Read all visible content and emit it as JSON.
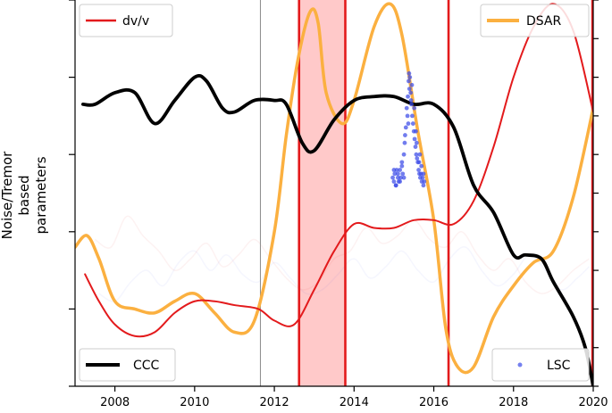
{
  "chart_data": {
    "type": "line",
    "ylabel": [
      "Noise/Tremor",
      "based",
      "parameters"
    ],
    "xlim": [
      2007.0,
      2020.0
    ],
    "ylim": [
      0.0,
      1.0
    ],
    "x_ticks": [
      2008,
      2010,
      2012,
      2014,
      2016,
      2018,
      2020
    ],
    "y_ticks_left": [
      0.0,
      0.2,
      0.4,
      0.6,
      0.8,
      1.0
    ],
    "y_ticks_right": [
      0.0,
      0.1,
      0.2,
      0.3,
      0.4,
      0.5,
      0.6,
      0.7,
      0.8,
      0.9,
      1.0
    ],
    "series": [
      {
        "name": "dv/v",
        "color": "#e31a1c",
        "legend": "top-left",
        "x": [
          2007.25,
          2007.6,
          2008.0,
          2008.5,
          2009.0,
          2009.5,
          2010.0,
          2010.5,
          2011.0,
          2011.6,
          2012.0,
          2012.5,
          2013.0,
          2013.5,
          2014.0,
          2014.5,
          2015.0,
          2015.5,
          2016.0,
          2016.5,
          2017.0,
          2017.5,
          2018.0,
          2018.5,
          2019.0,
          2019.5,
          2020.0
        ],
        "values": [
          0.29,
          0.22,
          0.16,
          0.13,
          0.14,
          0.19,
          0.22,
          0.22,
          0.21,
          0.2,
          0.17,
          0.16,
          0.25,
          0.35,
          0.42,
          0.41,
          0.41,
          0.43,
          0.43,
          0.42,
          0.48,
          0.62,
          0.8,
          0.93,
          0.99,
          0.92,
          0.71
        ]
      },
      {
        "name": "DSAR",
        "color": "#fbb040",
        "legend": "top-right",
        "x": [
          2007.0,
          2007.3,
          2007.6,
          2008.0,
          2008.5,
          2009.0,
          2009.5,
          2010.0,
          2010.5,
          2011.0,
          2011.5,
          2012.0,
          2012.3,
          2012.6,
          2012.9,
          2013.1,
          2013.3,
          2013.7,
          2014.0,
          2014.5,
          2014.9,
          2015.2,
          2015.6,
          2016.0,
          2016.3,
          2016.6,
          2017.0,
          2017.5,
          2018.0,
          2018.5,
          2019.0,
          2019.5,
          2020.0
        ],
        "values": [
          0.36,
          0.39,
          0.33,
          0.22,
          0.2,
          0.19,
          0.22,
          0.24,
          0.19,
          0.14,
          0.17,
          0.4,
          0.65,
          0.85,
          0.97,
          0.94,
          0.76,
          0.68,
          0.74,
          0.93,
          0.99,
          0.91,
          0.66,
          0.43,
          0.15,
          0.05,
          0.05,
          0.18,
          0.26,
          0.32,
          0.35,
          0.49,
          0.72
        ]
      },
      {
        "name": "CCC",
        "color": "#000000",
        "legend": "bottom-left",
        "x": [
          2007.2,
          2007.5,
          2008.0,
          2008.5,
          2009.0,
          2009.5,
          2010.0,
          2010.3,
          2010.7,
          2011.0,
          2011.5,
          2012.0,
          2012.3,
          2012.7,
          2013.0,
          2013.5,
          2014.0,
          2014.5,
          2015.0,
          2015.5,
          2016.0,
          2016.5,
          2017.0,
          2017.5,
          2018.0,
          2018.3,
          2018.7,
          2019.0,
          2019.5,
          2019.8,
          2020.0
        ],
        "values": [
          0.73,
          0.73,
          0.76,
          0.76,
          0.68,
          0.74,
          0.8,
          0.79,
          0.72,
          0.71,
          0.74,
          0.74,
          0.73,
          0.63,
          0.61,
          0.69,
          0.74,
          0.75,
          0.75,
          0.73,
          0.73,
          0.67,
          0.52,
          0.45,
          0.34,
          0.34,
          0.33,
          0.27,
          0.18,
          0.1,
          0.0
        ]
      },
      {
        "name": "LSC",
        "type": "scatter",
        "color": "#3b4be8",
        "legend": "bottom-right",
        "x": [
          2014.97,
          2015.0,
          2015.02,
          2015.05,
          2015.07,
          2015.1,
          2015.12,
          2015.15,
          2015.17,
          2015.2,
          2015.22,
          2015.25,
          2015.27,
          2015.3,
          2015.32,
          2015.35,
          2015.37,
          2015.38,
          2015.4,
          2015.42,
          2015.44,
          2015.46,
          2015.48,
          2015.5,
          2015.52,
          2015.54,
          2015.56,
          2015.58,
          2015.6,
          2015.62,
          2015.64,
          2015.66,
          2015.68,
          2015.7,
          2015.72,
          2015.74,
          2015.76,
          2015.0,
          2015.1,
          2015.2,
          2015.28,
          2015.34,
          2015.39,
          2015.45,
          2015.51,
          2015.57,
          2015.63,
          2015.69,
          2015.74,
          2015.05,
          2015.15,
          2015.25,
          2015.36,
          2015.43,
          2015.55,
          2015.65
        ],
        "values": [
          0.54,
          0.53,
          0.55,
          0.52,
          0.56,
          0.54,
          0.53,
          0.56,
          0.54,
          0.57,
          0.55,
          0.6,
          0.63,
          0.67,
          0.72,
          0.75,
          0.79,
          0.81,
          0.8,
          0.76,
          0.73,
          0.7,
          0.68,
          0.66,
          0.64,
          0.62,
          0.6,
          0.59,
          0.58,
          0.56,
          0.55,
          0.54,
          0.55,
          0.53,
          0.54,
          0.52,
          0.53,
          0.56,
          0.55,
          0.58,
          0.65,
          0.7,
          0.77,
          0.78,
          0.72,
          0.63,
          0.58,
          0.57,
          0.55,
          0.52,
          0.53,
          0.54,
          0.68,
          0.74,
          0.66,
          0.6
        ]
      }
    ],
    "faint_background_series": {
      "red": {
        "x": [
          2007.5,
          2007.9,
          2008.3,
          2008.7,
          2009.1,
          2009.5,
          2009.9,
          2010.3,
          2010.7,
          2011.1,
          2011.5,
          2011.9,
          2012.3,
          2012.7,
          2013.1,
          2013.5,
          2013.9,
          2014.3,
          2014.7,
          2015.1,
          2015.5,
          2015.9,
          2016.3,
          2016.7,
          2017.1,
          2017.5,
          2017.9,
          2018.3,
          2018.7,
          2019.1,
          2019.5,
          2019.9
        ],
        "values": [
          0.38,
          0.36,
          0.44,
          0.39,
          0.35,
          0.3,
          0.33,
          0.37,
          0.31,
          0.34,
          0.38,
          0.33,
          0.28,
          0.25,
          0.27,
          0.33,
          0.35,
          0.41,
          0.37,
          0.39,
          0.43,
          0.38,
          0.36,
          0.4,
          0.34,
          0.3,
          0.33,
          0.27,
          0.24,
          0.26,
          0.3,
          0.33
        ]
      },
      "blue": {
        "x": [
          2007.6,
          2008.0,
          2008.4,
          2008.8,
          2009.2,
          2009.6,
          2010.0,
          2010.4,
          2010.8,
          2011.2,
          2011.6,
          2012.0,
          2012.4,
          2012.8,
          2013.2,
          2013.6,
          2014.0,
          2014.4,
          2014.8,
          2015.2,
          2015.6,
          2016.0,
          2016.4,
          2016.8,
          2017.2,
          2017.6,
          2018.0,
          2018.4,
          2018.8,
          2019.2,
          2019.6,
          2019.9
        ],
        "values": [
          0.24,
          0.22,
          0.27,
          0.3,
          0.26,
          0.32,
          0.35,
          0.3,
          0.34,
          0.29,
          0.27,
          0.32,
          0.28,
          0.24,
          0.25,
          0.29,
          0.33,
          0.28,
          0.31,
          0.35,
          0.3,
          0.27,
          0.33,
          0.36,
          0.3,
          0.26,
          0.29,
          0.34,
          0.3,
          0.25,
          0.28,
          0.31
        ]
      }
    },
    "vertical_lines": [
      {
        "x": 2011.65,
        "color": "#8c8c8c",
        "style": "thin"
      },
      {
        "x": 2012.62,
        "color": "#e31a1c",
        "style": "thick"
      },
      {
        "x": 2013.78,
        "color": "#e31a1c",
        "style": "thick"
      },
      {
        "x": 2016.37,
        "color": "#e31a1c",
        "style": "thick"
      },
      {
        "x": 2019.98,
        "color": "#e31a1c",
        "style": "thick"
      }
    ],
    "shaded_regions": [
      {
        "x0": 2012.62,
        "x1": 2013.78,
        "color": "#ffc9c9"
      }
    ],
    "legend_labels": {
      "top_left": "dv/v",
      "top_right": "DSAR",
      "bottom_left": "CCC",
      "bottom_right": "LSC"
    }
  }
}
